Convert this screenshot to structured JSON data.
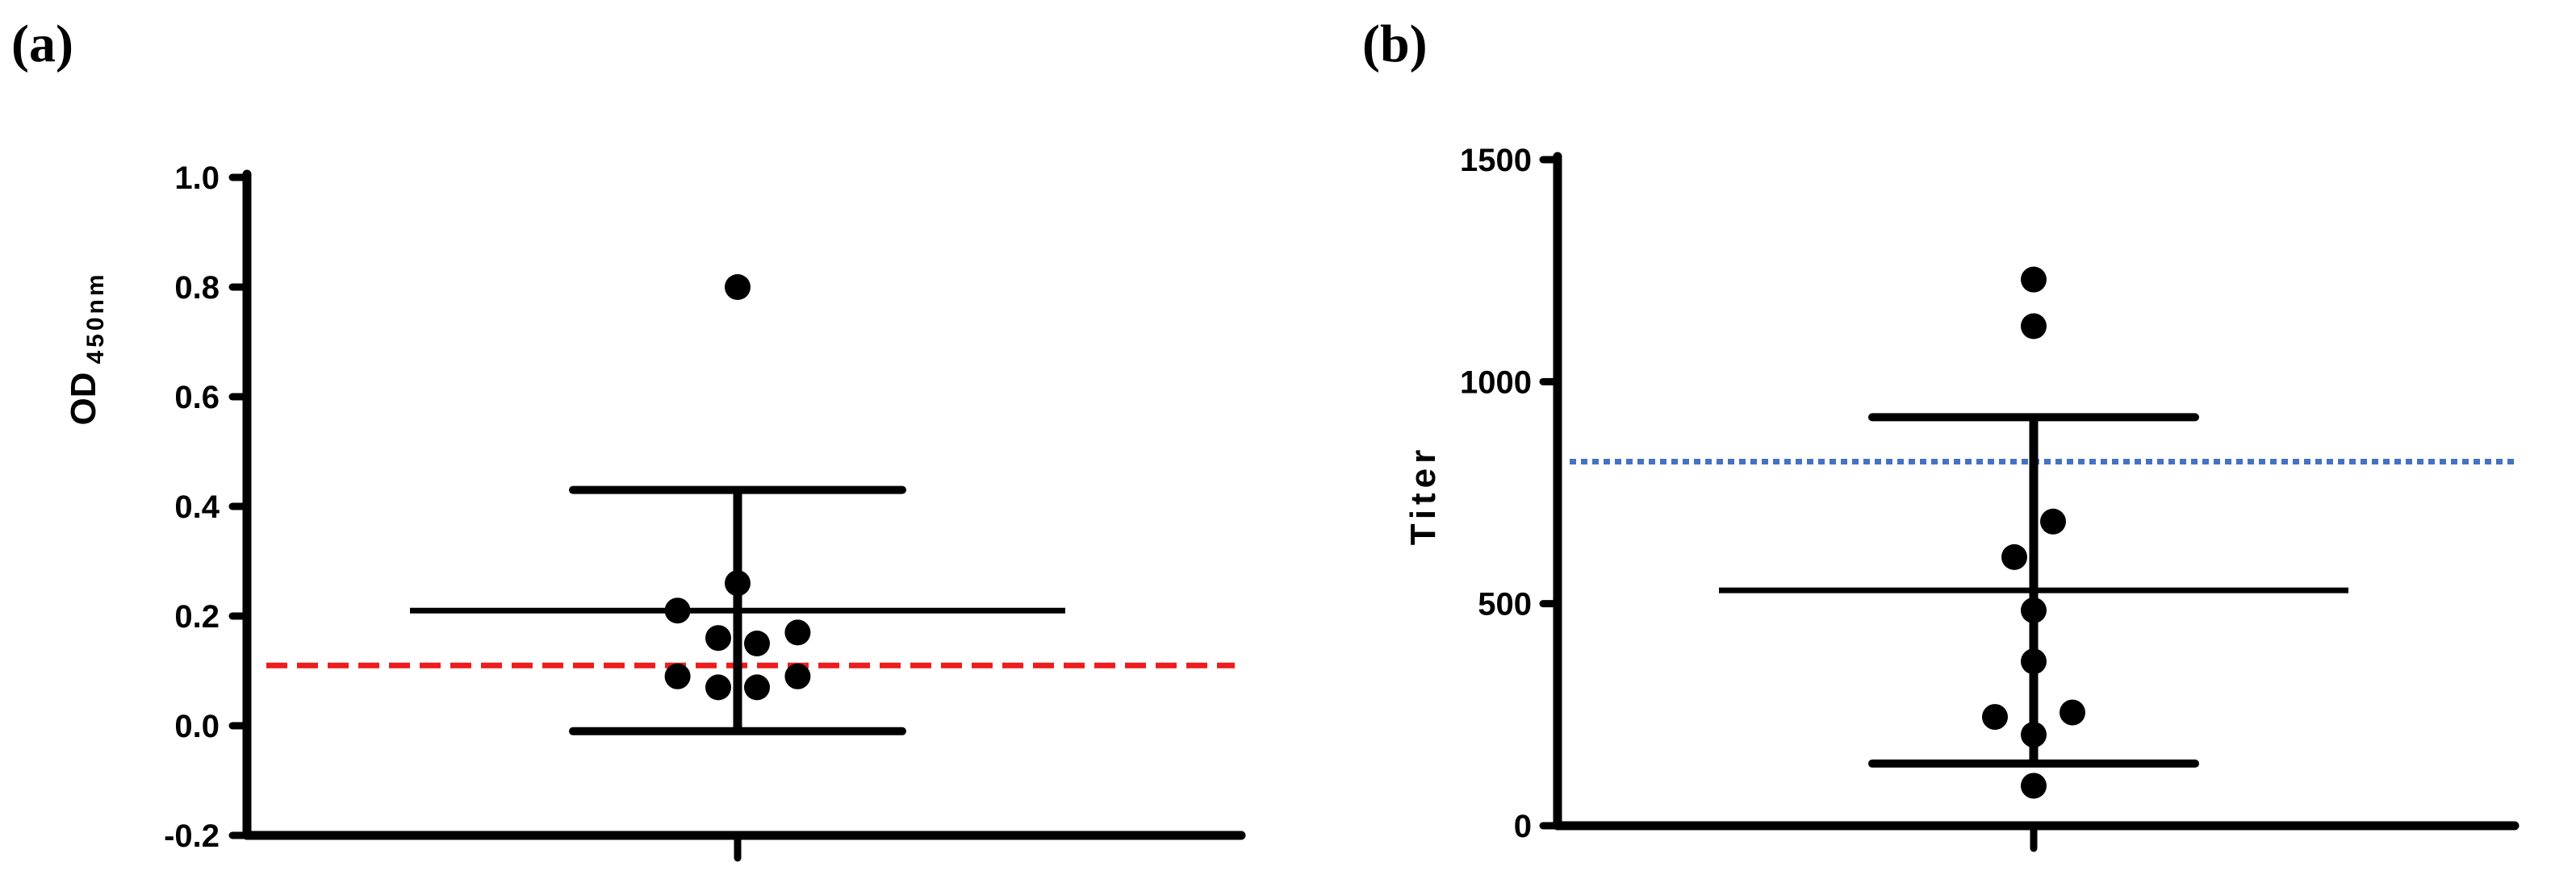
{
  "chart_data": [
    {
      "type": "scatter",
      "panel_label": "(a)",
      "ylabel": "OD",
      "ylabel_subscript": "450nm",
      "xlabel": "",
      "ylim": [
        -0.2,
        1.0
      ],
      "yticks": [
        -0.2,
        0.0,
        0.2,
        0.4,
        0.6,
        0.8,
        1.0
      ],
      "ytick_labels": [
        "-0.2",
        "0.0",
        "0.2",
        "0.4",
        "0.6",
        "0.8",
        "1.0"
      ],
      "points": [
        {
          "x": 0.0,
          "y": 0.8
        },
        {
          "x": 0.0,
          "y": 0.26
        },
        {
          "x": -0.31,
          "y": 0.21
        },
        {
          "x": 0.31,
          "y": 0.17
        },
        {
          "x": -0.1,
          "y": 0.16
        },
        {
          "x": 0.1,
          "y": 0.15
        },
        {
          "x": -0.31,
          "y": 0.09
        },
        {
          "x": 0.31,
          "y": 0.09
        },
        {
          "x": -0.1,
          "y": 0.07
        },
        {
          "x": 0.1,
          "y": 0.07
        }
      ],
      "mean": 0.21,
      "error_upper": 0.43,
      "error_lower": -0.01,
      "cutoff": 0.11,
      "cutoff_color": "#ee1c1c",
      "grid": false
    },
    {
      "type": "scatter",
      "panel_label": "(b)",
      "ylabel": "Titer",
      "xlabel": "",
      "ylim": [
        0,
        1500
      ],
      "yticks": [
        0,
        500,
        1000,
        1500
      ],
      "ytick_labels": [
        "0",
        "500",
        "1000",
        "1500"
      ],
      "points": [
        {
          "x": 0.0,
          "y": 1230
        },
        {
          "x": 0.0,
          "y": 1125
        },
        {
          "x": 0.1,
          "y": 685
        },
        {
          "x": -0.1,
          "y": 605
        },
        {
          "x": 0.0,
          "y": 485
        },
        {
          "x": 0.0,
          "y": 370
        },
        {
          "x": -0.2,
          "y": 245
        },
        {
          "x": 0.2,
          "y": 255
        },
        {
          "x": 0.0,
          "y": 205
        },
        {
          "x": 0.0,
          "y": 90
        }
      ],
      "mean": 530,
      "error_upper": 920,
      "error_lower": 140,
      "cutoff": 820,
      "cutoff_color": "#4472c4",
      "grid": false
    }
  ]
}
